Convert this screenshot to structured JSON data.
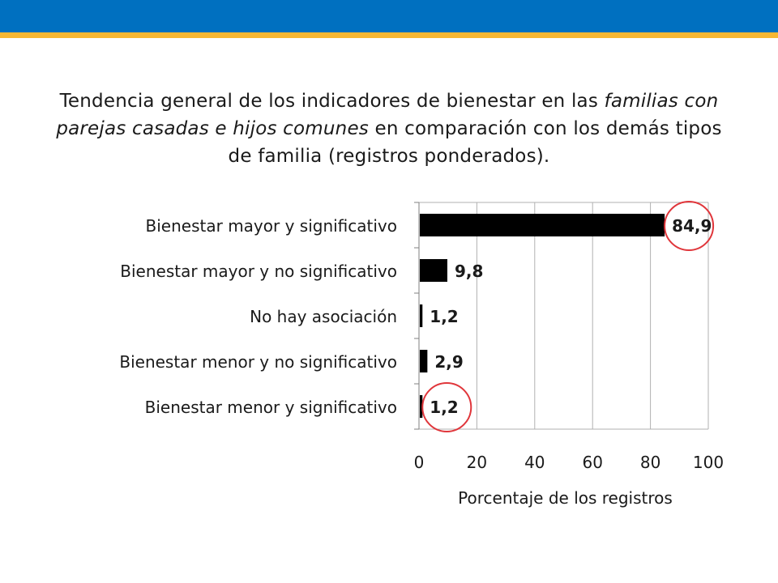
{
  "header": {
    "band_color": "#0070c0",
    "stripe_color": "#f7b733"
  },
  "title": {
    "part1": "Tendencia general de los indicadores de bienestar en las ",
    "emph": "familias con parejas casadas e hijos comunes",
    "part2": " en comparación con los demás tipos de familia (registros ponderados)."
  },
  "chart_data": {
    "type": "bar",
    "orientation": "horizontal",
    "categories": [
      "Bienestar mayor y significativo",
      "Bienestar mayor y no significativo",
      "No hay asociación",
      "Bienestar menor y no significativo",
      "Bienestar menor y significativo"
    ],
    "values": [
      84.9,
      9.8,
      1.2,
      2.9,
      1.2
    ],
    "data_labels": [
      "84,9",
      "9,8",
      "1,2",
      "2,9",
      "1,2"
    ],
    "highlighted": [
      0,
      4
    ],
    "highlight_color": "#e0363b",
    "bar_color": "#000000",
    "xlabel": "Porcentaje de los registros",
    "ylabel": "",
    "xlim": [
      0,
      100
    ],
    "xticks": [
      0,
      20,
      40,
      60,
      80,
      100
    ],
    "grid": true
  }
}
